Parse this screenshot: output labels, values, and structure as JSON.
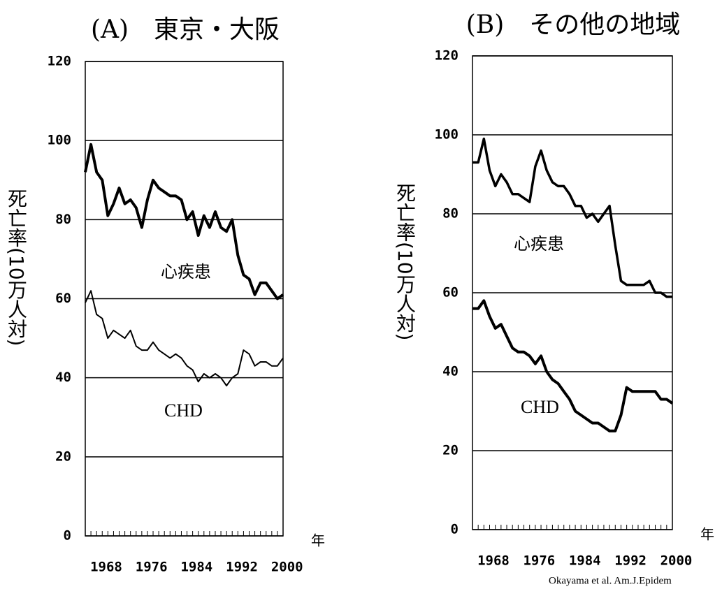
{
  "chart_data": [
    {
      "type": "line",
      "title": "(A)　東京・大阪",
      "y_label": "死亡率(10万人対)",
      "x_label": "年",
      "x": [
        1968,
        1969,
        1970,
        1971,
        1972,
        1973,
        1974,
        1975,
        1976,
        1977,
        1978,
        1979,
        1980,
        1981,
        1982,
        1983,
        1984,
        1985,
        1986,
        1987,
        1988,
        1989,
        1990,
        1991,
        1992,
        1993,
        1994,
        1995,
        1996,
        1997,
        1998,
        1999,
        2000,
        2001,
        2002,
        2003
      ],
      "series": [
        {
          "name": "心疾患",
          "color": "#000",
          "line_width": 4,
          "values": [
            92,
            99,
            92,
            90,
            81,
            84,
            88,
            84,
            85,
            83,
            78,
            85,
            90,
            88,
            87,
            86,
            86,
            85,
            80,
            82,
            76,
            81,
            78,
            82,
            78,
            77,
            80,
            71,
            66,
            65,
            61,
            64,
            64,
            62,
            60,
            61
          ]
        },
        {
          "name": "CHD",
          "color": "#000",
          "line_width": 2,
          "values": [
            59,
            62,
            56,
            55,
            50,
            52,
            51,
            50,
            52,
            48,
            47,
            47,
            49,
            47,
            46,
            45,
            46,
            45,
            43,
            42,
            39,
            41,
            40,
            41,
            40,
            38,
            40,
            41,
            47,
            46,
            43,
            44,
            44,
            43,
            43,
            45
          ]
        }
      ],
      "xlim": [
        1968,
        2003
      ],
      "xticks": [
        1968,
        1976,
        1984,
        1992,
        2000
      ],
      "ylim": [
        0,
        120
      ],
      "yticks": [
        0,
        20,
        40,
        60,
        80,
        100,
        120
      ],
      "grid": true
    },
    {
      "type": "line",
      "title": "(B)　その他の地域",
      "y_label": "死亡率(10万人対)",
      "x_label": "年",
      "x": [
        1968,
        1969,
        1970,
        1971,
        1972,
        1973,
        1974,
        1975,
        1976,
        1977,
        1978,
        1979,
        1980,
        1981,
        1982,
        1983,
        1984,
        1985,
        1986,
        1987,
        1988,
        1989,
        1990,
        1991,
        1992,
        1993,
        1994,
        1995,
        1996,
        1997,
        1998,
        1999,
        2000,
        2001,
        2002,
        2003
      ],
      "series": [
        {
          "name": "心疾患",
          "color": "#000",
          "line_width": 3.5,
          "values": [
            93,
            93,
            99,
            91,
            87,
            90,
            88,
            85,
            85,
            84,
            83,
            92,
            96,
            91,
            88,
            87,
            87,
            85,
            82,
            82,
            79,
            80,
            78,
            80,
            82,
            72,
            63,
            62,
            62,
            62,
            62,
            63,
            60,
            60,
            59,
            59
          ]
        },
        {
          "name": "CHD",
          "color": "#000",
          "line_width": 4,
          "values": [
            56,
            56,
            58,
            54,
            51,
            52,
            49,
            46,
            45,
            45,
            44,
            42,
            44,
            40,
            38,
            37,
            35,
            33,
            30,
            29,
            28,
            27,
            27,
            26,
            25,
            25,
            29,
            36,
            35,
            35,
            35,
            35,
            35,
            33,
            33,
            32
          ]
        }
      ],
      "xlim": [
        1968,
        2003
      ],
      "xticks": [
        1968,
        1976,
        1984,
        1992,
        2000
      ],
      "ylim": [
        0,
        120
      ],
      "yticks": [
        0,
        20,
        40,
        60,
        80,
        100,
        120
      ],
      "grid": true,
      "source": "Okayama et al. Am.J.Epidem"
    }
  ]
}
